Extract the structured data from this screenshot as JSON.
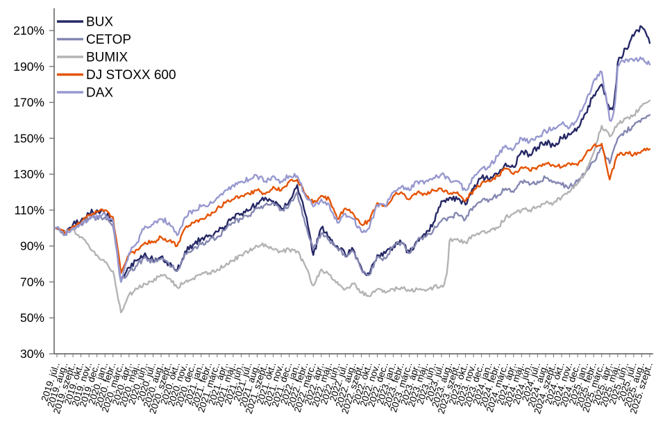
{
  "chart_data": {
    "type": "line",
    "title": "",
    "grid": false,
    "y_axis": {
      "unit": "%",
      "min": 30,
      "max": 217,
      "tick_values": [
        210,
        190,
        170,
        150,
        130,
        110,
        90,
        70,
        50,
        30
      ],
      "tick_labels": [
        "210%",
        "190%",
        "170%",
        "150%",
        "130%",
        "110%",
        "90%",
        "70%",
        "50%",
        "30%"
      ]
    },
    "x_axis": {
      "categories": [
        "2019. júl..",
        "2019. aug..",
        "2019. szept..",
        "2019. okt..",
        "2019. nov..",
        "2019. dec..",
        "2020. jan..",
        "2020. febr..",
        "2020. márc..",
        "2020. ápr..",
        "2020. máj..",
        "2020. jún..",
        "2020. júl..",
        "2020. aug..",
        "2020. szept..",
        "2020. okt..",
        "2020. nov..",
        "2020. dec..",
        "2021. jan..",
        "2021. febr..",
        "2021. márc..",
        "2021. ápr..",
        "2021. máj..",
        "2021. jún..",
        "2021. júl..",
        "2021. aug..",
        "2021. szept..",
        "2021. okt..",
        "2021. nov..",
        "2021. dec..",
        "2022. jan..",
        "2022. febr..",
        "2022. márc..",
        "2022. ápr..",
        "2022. máj..",
        "2022. jún..",
        "2022. júl..",
        "2022. aug..",
        "2022. szept..",
        "2022. okt..",
        "2022. nov..",
        "2022. dec..",
        "2023. jan..",
        "2023. febr..",
        "2023. márc..",
        "2023. ápr..",
        "2023. máj..",
        "2023. jún..",
        "2023. júl..",
        "2023. aug..",
        "2023. szept..",
        "2023. okt..",
        "2023. nov..",
        "2023. dec..",
        "2024. jan..",
        "2024. febr..",
        "2024. márc..",
        "2024. ápr..",
        "2024. máj..",
        "2024. jún..",
        "2024. júl..",
        "2024. aug..",
        "2024. szept..",
        "2024. okt..",
        "2024. nov..",
        "2024. dec..",
        "2025. jan..",
        "2025. febr..",
        "2025. márc..",
        "2025. ápr..",
        "2025. máj..",
        "2025. jún..",
        "2025. júl..",
        "2025. aug..",
        "2025. szept.."
      ]
    },
    "legend": {
      "position": "top-left",
      "entries": [
        "BUX",
        "CETOP",
        "BUMIX",
        "DJ STOXX 600",
        "DAX"
      ]
    },
    "series": [
      {
        "name": "BUX",
        "color": "#252765",
        "values": [
          100,
          98,
          102,
          104,
          108,
          110,
          108,
          104,
          70,
          78,
          82,
          86,
          82,
          84,
          80,
          76,
          87,
          91,
          94,
          96,
          98,
          101,
          106,
          108,
          110,
          114,
          117,
          115,
          111,
          115,
          124,
          108,
          85,
          100,
          95,
          90,
          85,
          88,
          78,
          74,
          85,
          86,
          90,
          92,
          86,
          93,
          96,
          103,
          115,
          117,
          116,
          113,
          122,
          128,
          127,
          130,
          136,
          134,
          143,
          141,
          145,
          148,
          146,
          150,
          152,
          156,
          164,
          174,
          180,
          166,
          192,
          200,
          207,
          212,
          203
        ]
      },
      {
        "name": "CETOP",
        "color": "#8487B1",
        "values": [
          100,
          97,
          100,
          102,
          105,
          106,
          106,
          101,
          70,
          76,
          79,
          84,
          81,
          83,
          80,
          76,
          86,
          88,
          91,
          93,
          95,
          99,
          103,
          105,
          107,
          111,
          113,
          114,
          110,
          113,
          120,
          102,
          88,
          97,
          93,
          89,
          84,
          87,
          77,
          74,
          84,
          83,
          90,
          92,
          86,
          93,
          95,
          99,
          104,
          106,
          108,
          105,
          112,
          115,
          116,
          118,
          122,
          120,
          126,
          124,
          126,
          128,
          126,
          124,
          123,
          126,
          131,
          137,
          145,
          136,
          150,
          154,
          157,
          161,
          163
        ]
      },
      {
        "name": "BUMIX",
        "color": "#B3B3B6",
        "values": [
          100,
          98,
          99,
          95,
          90,
          85,
          81,
          76,
          53,
          63,
          66,
          69,
          70,
          74,
          72,
          67,
          70,
          72,
          74,
          75,
          77,
          79,
          82,
          85,
          87,
          90,
          91,
          88,
          87,
          88,
          87,
          79,
          68,
          77,
          74,
          70,
          66,
          69,
          64,
          62,
          66,
          64,
          66,
          67,
          65,
          66,
          65,
          67,
          68,
          93,
          94,
          92,
          96,
          98,
          98,
          100,
          106,
          108,
          110,
          110,
          112,
          114,
          114,
          117,
          120,
          125,
          131,
          142,
          157,
          151,
          158,
          161,
          163,
          168,
          171
        ]
      },
      {
        "name": "DJ STOXX 600",
        "color": "#E55304",
        "values": [
          100,
          97,
          101,
          103,
          107,
          109,
          110,
          106,
          75,
          85,
          88,
          92,
          92,
          95,
          93,
          90,
          100,
          103,
          105,
          107,
          111,
          114,
          116,
          118,
          119,
          121,
          119,
          123,
          121,
          126,
          127,
          119,
          114,
          118,
          116,
          105,
          111,
          108,
          102,
          104,
          114,
          112,
          118,
          120,
          116,
          120,
          119,
          121,
          122,
          119,
          120,
          115,
          121,
          125,
          126,
          129,
          133,
          130,
          134,
          132,
          134,
          136,
          135,
          134,
          136,
          135,
          141,
          146,
          147,
          127,
          141,
          142,
          141,
          143,
          144
        ]
      },
      {
        "name": "DAX",
        "color": "#9798CF",
        "values": [
          100,
          96,
          100,
          102,
          105,
          107,
          108,
          104,
          70,
          86,
          92,
          101,
          102,
          105,
          103,
          96,
          106,
          110,
          112,
          113,
          117,
          121,
          124,
          126,
          127,
          129,
          126,
          129,
          126,
          129,
          129,
          118,
          112,
          116,
          113,
          103,
          108,
          105,
          98,
          100,
          113,
          112,
          120,
          123,
          121,
          126,
          126,
          128,
          130,
          127,
          126,
          121,
          128,
          133,
          134,
          140,
          146,
          144,
          150,
          148,
          151,
          154,
          156,
          158,
          156,
          161,
          170,
          182,
          187,
          160,
          190,
          194,
          193,
          194,
          191
        ]
      }
    ]
  }
}
